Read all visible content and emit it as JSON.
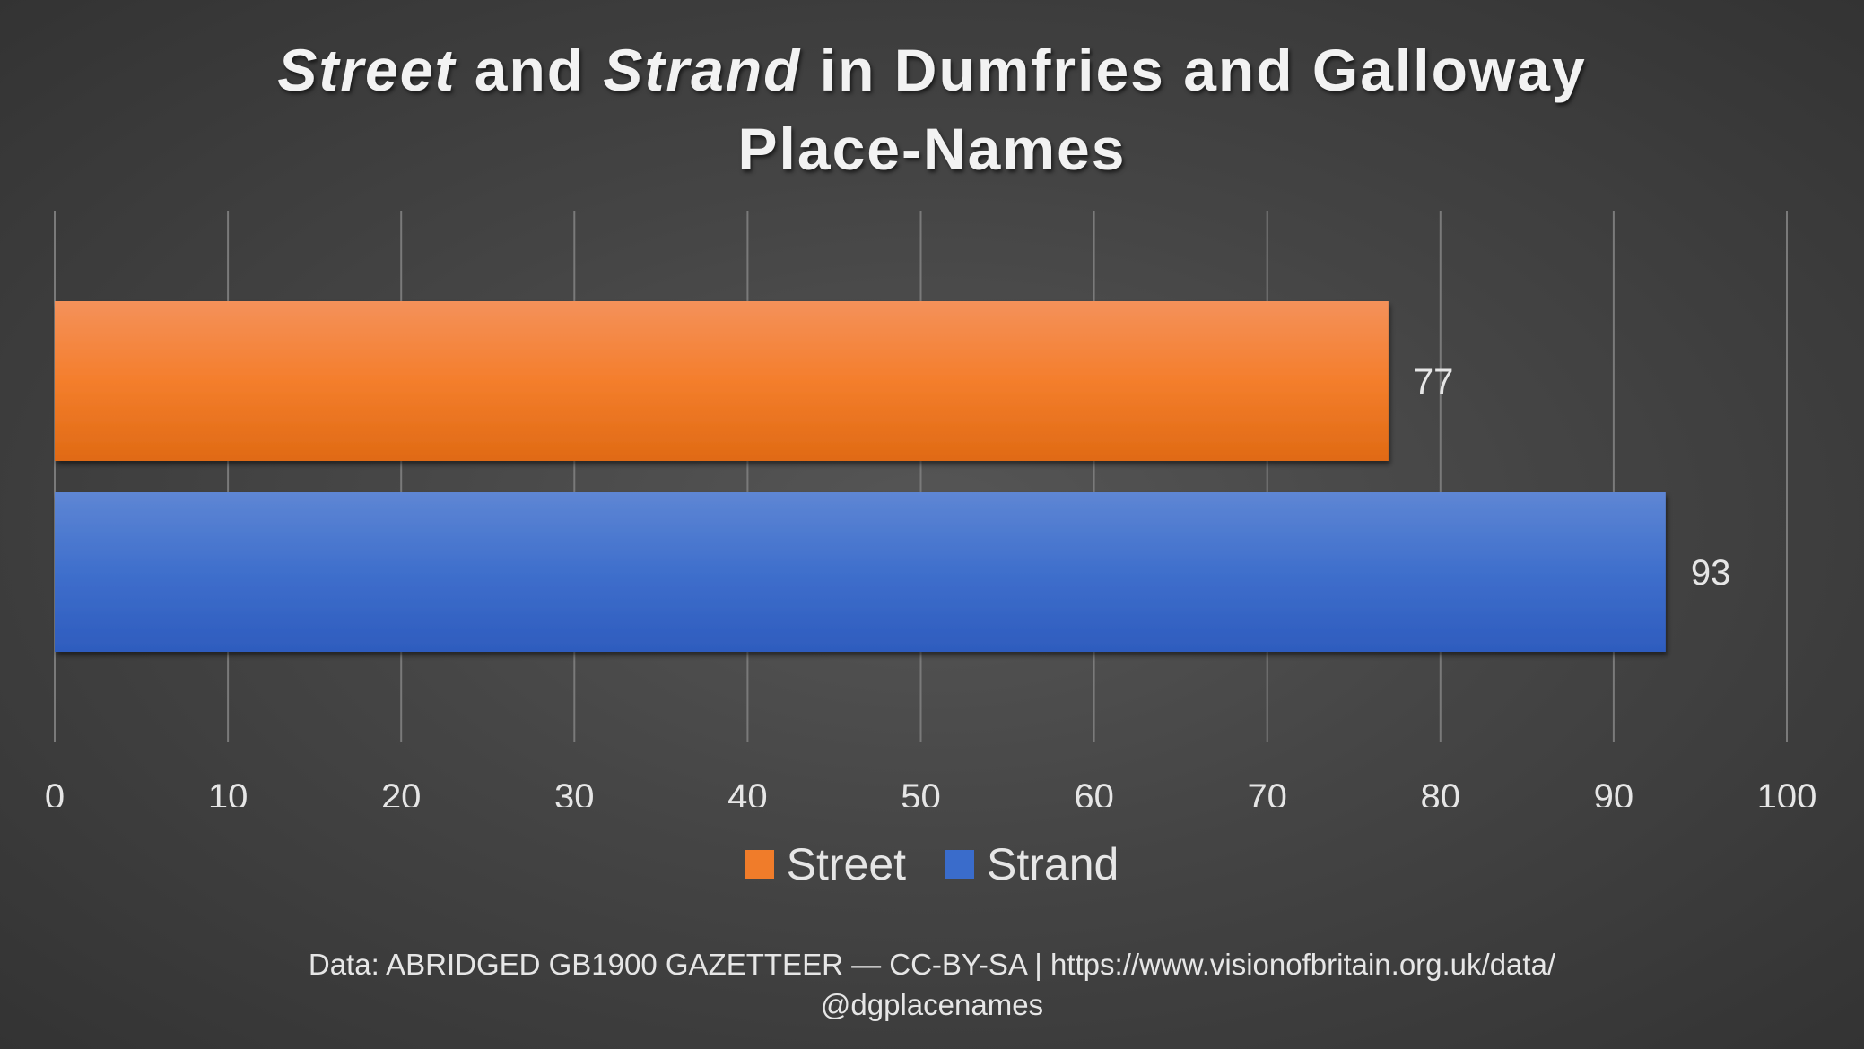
{
  "title": {
    "seg1_italic": "Street",
    "seg2": " and ",
    "seg3_italic": "Strand",
    "seg4": " in Dumfries and Galloway",
    "line2": "Place-Names"
  },
  "chart_data": {
    "type": "bar",
    "orientation": "horizontal",
    "title": "Street and Strand in Dumfries and Galloway Place-Names",
    "categories": [
      "Street",
      "Strand"
    ],
    "values": [
      77,
      93
    ],
    "colors": [
      "#F07C2A",
      "#3A6CCB"
    ],
    "xlim": [
      0,
      100
    ],
    "ticks": [
      0,
      10,
      20,
      30,
      40,
      50,
      60,
      70,
      80,
      90,
      100
    ],
    "xlabel": "",
    "ylabel": "",
    "grid": "vertical",
    "legend": "bottom",
    "data_labels": [
      "77",
      "93"
    ]
  },
  "legend": [
    {
      "label": "Street",
      "color": "#F07C2A"
    },
    {
      "label": "Strand",
      "color": "#3A6CCB"
    }
  ],
  "footer": {
    "line1": "Data: ABRIDGED GB1900 GAZETTEER — CC-BY-SA | https://www.visionofbritain.org.uk/data/",
    "line2": "@dgplacenames"
  }
}
